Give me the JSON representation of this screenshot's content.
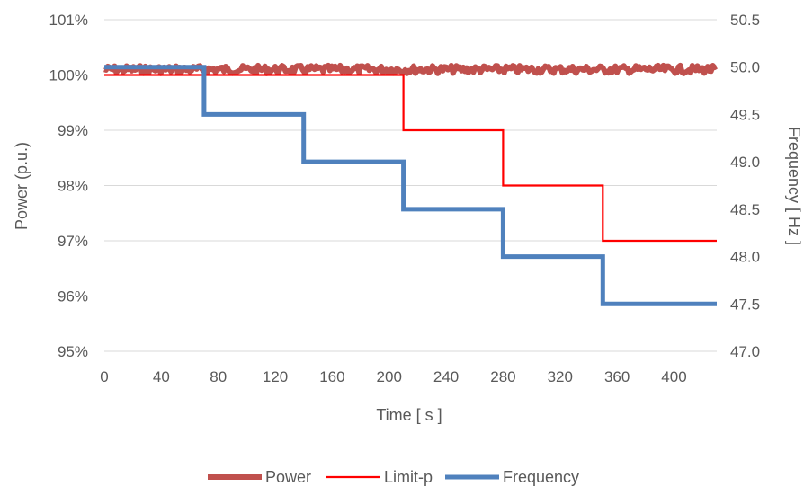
{
  "chart_data": {
    "type": "line",
    "xlabel": "Time [ s ]",
    "ylabel_left": "Power (p.u.)",
    "ylabel_right": "Frequency [ Hz ]",
    "x_range": [
      0,
      430
    ],
    "x_ticks": [
      0,
      40,
      80,
      120,
      160,
      200,
      240,
      280,
      320,
      360,
      400
    ],
    "y_left_range": [
      95,
      101
    ],
    "y_left_ticks": [
      95,
      96,
      97,
      98,
      99,
      100,
      101
    ],
    "y_left_tick_labels": [
      "95%",
      "96%",
      "97%",
      "98%",
      "99%",
      "100%",
      "101%"
    ],
    "y_right_range": [
      47.0,
      50.5
    ],
    "y_right_ticks": [
      47.0,
      47.5,
      48.0,
      48.5,
      49.0,
      49.5,
      50.0,
      50.5
    ],
    "y_right_tick_labels": [
      "47.0",
      "47.5",
      "48.0",
      "48.5",
      "49.0",
      "49.5",
      "50.0",
      "50.5"
    ],
    "grid": "horizontal",
    "legend_position": "bottom",
    "series": [
      {
        "name": "Power",
        "axis": "left",
        "color": "#C0504D",
        "style": "thick-noisy",
        "x": [
          0,
          430
        ],
        "y": [
          100.1,
          100.1
        ]
      },
      {
        "name": "Limit-p",
        "axis": "left",
        "color": "#FF0000",
        "style": "thin-step",
        "x": [
          0,
          210,
          210,
          280,
          280,
          350,
          350,
          430
        ],
        "y": [
          100,
          100,
          99,
          99,
          98,
          98,
          97,
          97
        ]
      },
      {
        "name": "Frequency",
        "axis": "right",
        "color": "#4F81BD",
        "style": "thick-step",
        "x": [
          0,
          70,
          70,
          140,
          140,
          210,
          210,
          280,
          280,
          350,
          350,
          430
        ],
        "y": [
          50.0,
          50.0,
          49.5,
          49.5,
          49.0,
          49.0,
          48.5,
          48.5,
          48.0,
          48.0,
          47.5,
          47.5
        ]
      }
    ]
  }
}
